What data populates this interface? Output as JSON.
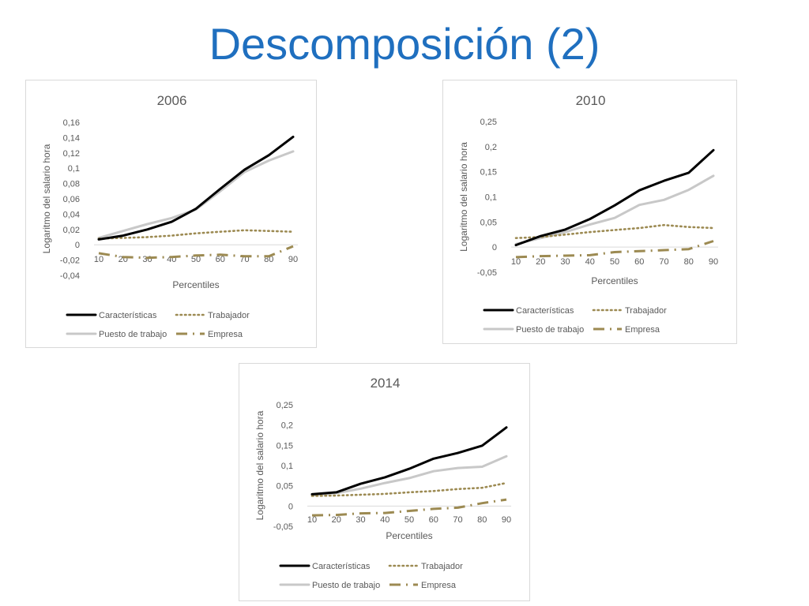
{
  "slide": {
    "title": "Descomposición (2)"
  },
  "chart_data": [
    {
      "type": "line",
      "title": "2006",
      "xlabel": "Percentiles",
      "ylabel": "Logaritmo del salario hora",
      "categories": [
        "10",
        "20",
        "30",
        "40",
        "50",
        "60",
        "70",
        "80",
        "90"
      ],
      "ylim": [
        -0.04,
        0.16
      ],
      "yticks": [
        -0.04,
        -0.02,
        0,
        0.02,
        0.04,
        0.06,
        0.08,
        0.1,
        0.12,
        0.14,
        0.16
      ],
      "ytick_labels": [
        "-0,04",
        "-0,02",
        "0",
        "0,02",
        "0,04",
        "0,06",
        "0,08",
        "0,1",
        "0,12",
        "0,14",
        "0,16"
      ],
      "grid": false,
      "legend_position": "bottom",
      "series": [
        {
          "name": "Características",
          "color": "#000000",
          "style": "solid",
          "values": [
            0.007,
            0.012,
            0.02,
            0.03,
            0.047,
            0.073,
            0.098,
            0.117,
            0.141
          ]
        },
        {
          "name": "Trabajador",
          "color": "#9c8a52",
          "style": "dotted",
          "values": [
            0.008,
            0.009,
            0.01,
            0.012,
            0.015,
            0.017,
            0.019,
            0.018,
            0.017
          ]
        },
        {
          "name": "Puesto de trabajo",
          "color": "#c8c8c8",
          "style": "solid",
          "values": [
            0.009,
            0.018,
            0.027,
            0.035,
            0.046,
            0.07,
            0.095,
            0.11,
            0.122
          ]
        },
        {
          "name": "Empresa",
          "color": "#9c8a52",
          "style": "dashdot",
          "values": [
            -0.011,
            -0.016,
            -0.017,
            -0.016,
            -0.014,
            -0.013,
            -0.015,
            -0.015,
            -0.002
          ]
        }
      ]
    },
    {
      "type": "line",
      "title": "2010",
      "xlabel": "Percentiles",
      "ylabel": "Logaritmo del salario hora",
      "categories": [
        "10",
        "20",
        "30",
        "40",
        "50",
        "60",
        "70",
        "80",
        "90"
      ],
      "ylim": [
        -0.05,
        0.25
      ],
      "yticks": [
        -0.05,
        0,
        0.05,
        0.1,
        0.15,
        0.2,
        0.25
      ],
      "ytick_labels": [
        "-0,05",
        "0",
        "0,05",
        "0,1",
        "0,15",
        "0,2",
        "0,25"
      ],
      "grid": false,
      "legend_position": "bottom",
      "series": [
        {
          "name": "Características",
          "color": "#000000",
          "style": "solid",
          "values": [
            0.004,
            0.022,
            0.035,
            0.056,
            0.083,
            0.113,
            0.132,
            0.148,
            0.193
          ]
        },
        {
          "name": "Trabajador",
          "color": "#9c8a52",
          "style": "dotted",
          "values": [
            0.018,
            0.02,
            0.025,
            0.03,
            0.034,
            0.038,
            0.044,
            0.04,
            0.038
          ]
        },
        {
          "name": "Puesto de trabajo",
          "color": "#c8c8c8",
          "style": "solid",
          "values": [
            0.006,
            0.018,
            0.03,
            0.045,
            0.058,
            0.084,
            0.094,
            0.114,
            0.142
          ]
        },
        {
          "name": "Empresa",
          "color": "#9c8a52",
          "style": "dashdot",
          "values": [
            -0.02,
            -0.018,
            -0.017,
            -0.016,
            -0.01,
            -0.008,
            -0.006,
            -0.004,
            0.012
          ]
        }
      ]
    },
    {
      "type": "line",
      "title": "2014",
      "xlabel": "Percentiles",
      "ylabel": "Logaritmo del salario hora",
      "categories": [
        "10",
        "20",
        "30",
        "40",
        "50",
        "60",
        "70",
        "80",
        "90"
      ],
      "ylim": [
        -0.05,
        0.25
      ],
      "yticks": [
        -0.05,
        0,
        0.05,
        0.1,
        0.15,
        0.2,
        0.25
      ],
      "ytick_labels": [
        "-0,05",
        "0",
        "0,05",
        "0,1",
        "0,15",
        "0,2",
        "0,25"
      ],
      "grid": false,
      "legend_position": "bottom",
      "series": [
        {
          "name": "Características",
          "color": "#000000",
          "style": "solid",
          "values": [
            0.029,
            0.034,
            0.055,
            0.071,
            0.092,
            0.117,
            0.131,
            0.149,
            0.194
          ]
        },
        {
          "name": "Trabajador",
          "color": "#9c8a52",
          "style": "dotted",
          "values": [
            0.025,
            0.026,
            0.028,
            0.03,
            0.034,
            0.037,
            0.042,
            0.045,
            0.057
          ]
        },
        {
          "name": "Puesto de trabajo",
          "color": "#c8c8c8",
          "style": "solid",
          "values": [
            0.027,
            0.032,
            0.043,
            0.057,
            0.069,
            0.086,
            0.094,
            0.097,
            0.123
          ]
        },
        {
          "name": "Empresa",
          "color": "#9c8a52",
          "style": "dashdot",
          "values": [
            -0.023,
            -0.022,
            -0.018,
            -0.017,
            -0.012,
            -0.007,
            -0.004,
            0.007,
            0.016
          ]
        }
      ]
    }
  ]
}
